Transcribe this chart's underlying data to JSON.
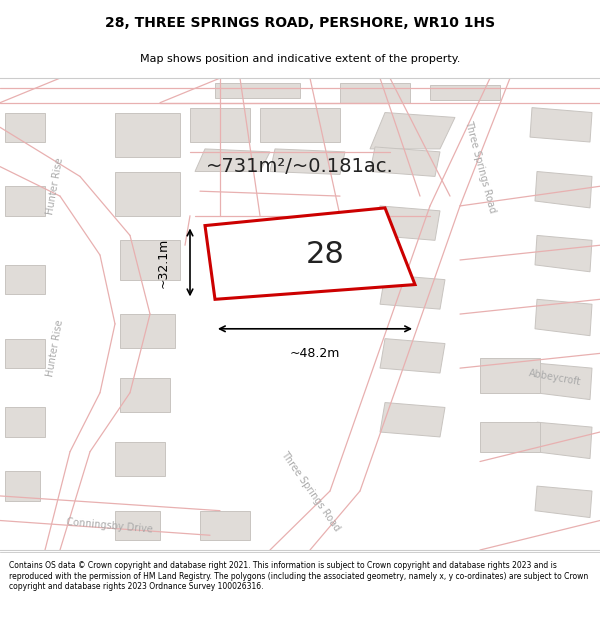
{
  "title_line1": "28, THREE SPRINGS ROAD, PERSHORE, WR10 1HS",
  "title_line2": "Map shows position and indicative extent of the property.",
  "footer_text": "Contains OS data © Crown copyright and database right 2021. This information is subject to Crown copyright and database rights 2023 and is reproduced with the permission of HM Land Registry. The polygons (including the associated geometry, namely x, y co-ordinates) are subject to Crown copyright and database rights 2023 Ordnance Survey 100026316.",
  "area_text": "~731m²/~0.181ac.",
  "plot_number": "28",
  "dim_width": "~48.2m",
  "dim_height": "~32.1m",
  "map_bg": "#f7f5f2",
  "road_fill": "#ede8e8",
  "road_line": "#e8b0b0",
  "building_fill": "#e0dcd8",
  "building_edge": "#c8c4c0",
  "plot_edge": "#cc0000",
  "plot_fill": "#ffffff",
  "label_color": "#aaaaaa",
  "title_fs": 10,
  "subtitle_fs": 8,
  "area_fs": 14,
  "plot_num_fs": 22,
  "dim_fs": 9,
  "label_fs": 7
}
